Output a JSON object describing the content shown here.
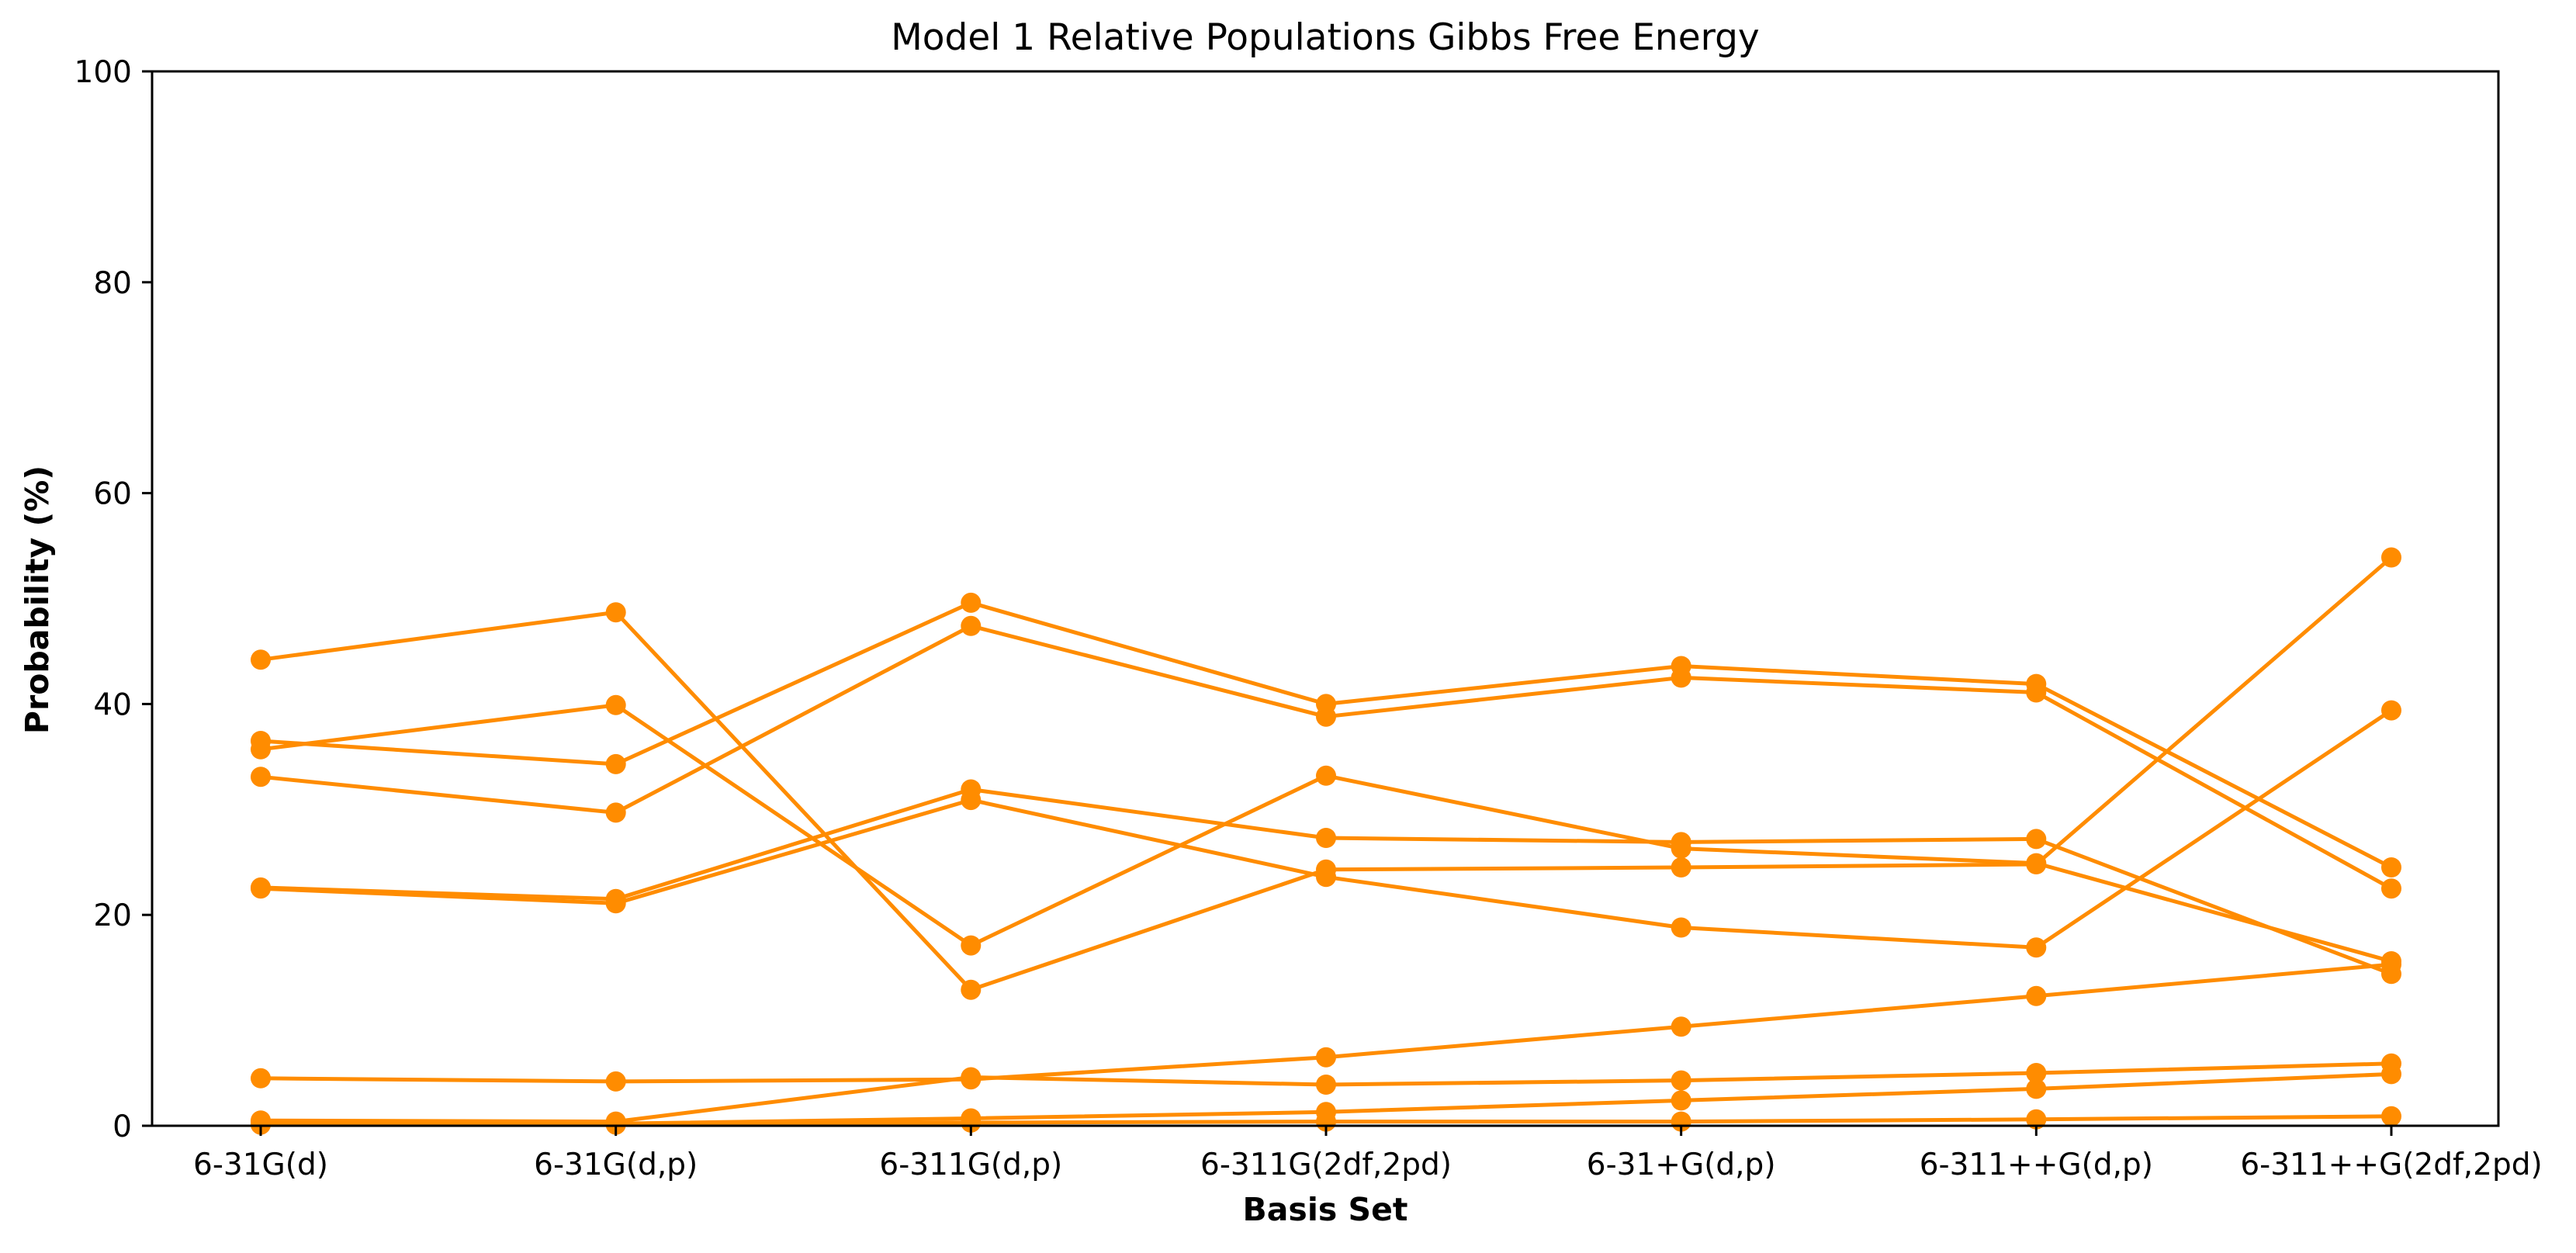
{
  "chart_data": {
    "type": "line",
    "title": "Model 1 Relative Populations Gibbs Free Energy",
    "xlabel": "Basis Set",
    "ylabel": "Probability (%)",
    "ylim": [
      0,
      100
    ],
    "yticks": [
      "0",
      "20",
      "40",
      "60",
      "80",
      "100"
    ],
    "categories": [
      "6-31G(d)",
      "6-31G(d,p)",
      "6-311G(d,p)",
      "6-311G(2df,2pd)",
      "6-31+G(d,p)",
      "6-311++G(d,p)",
      "6-311++G(2df,2pd)"
    ],
    "grid": false,
    "legend": "none",
    "color": "#ff8c00",
    "marker": "circle",
    "series": [
      {
        "values": [
          44.2,
          48.7,
          12.9,
          24.3,
          24.5,
          24.8,
          53.9
        ]
      },
      {
        "values": [
          36.5,
          34.3,
          49.6,
          40.0,
          43.6,
          41.9,
          24.5
        ]
      },
      {
        "values": [
          35.7,
          39.9,
          17.1,
          33.2,
          26.3,
          24.9,
          15.6
        ]
      },
      {
        "values": [
          33.1,
          29.7,
          47.4,
          38.8,
          42.5,
          41.1,
          22.5
        ]
      },
      {
        "values": [
          22.6,
          21.5,
          31.9,
          27.3,
          26.9,
          27.2,
          14.4
        ]
      },
      {
        "values": [
          22.5,
          21.1,
          30.9,
          23.6,
          18.8,
          16.9,
          39.4
        ]
      },
      {
        "values": [
          4.5,
          4.2,
          4.4,
          6.5,
          9.4,
          12.3,
          15.3
        ]
      },
      {
        "values": [
          0.5,
          0.4,
          4.6,
          3.9,
          4.3,
          5.0,
          5.9
        ]
      },
      {
        "values": [
          0.4,
          0.2,
          0.7,
          1.3,
          2.4,
          3.5,
          4.9
        ]
      },
      {
        "values": [
          0.1,
          0.1,
          0.3,
          0.4,
          0.4,
          0.6,
          0.9
        ]
      }
    ]
  }
}
